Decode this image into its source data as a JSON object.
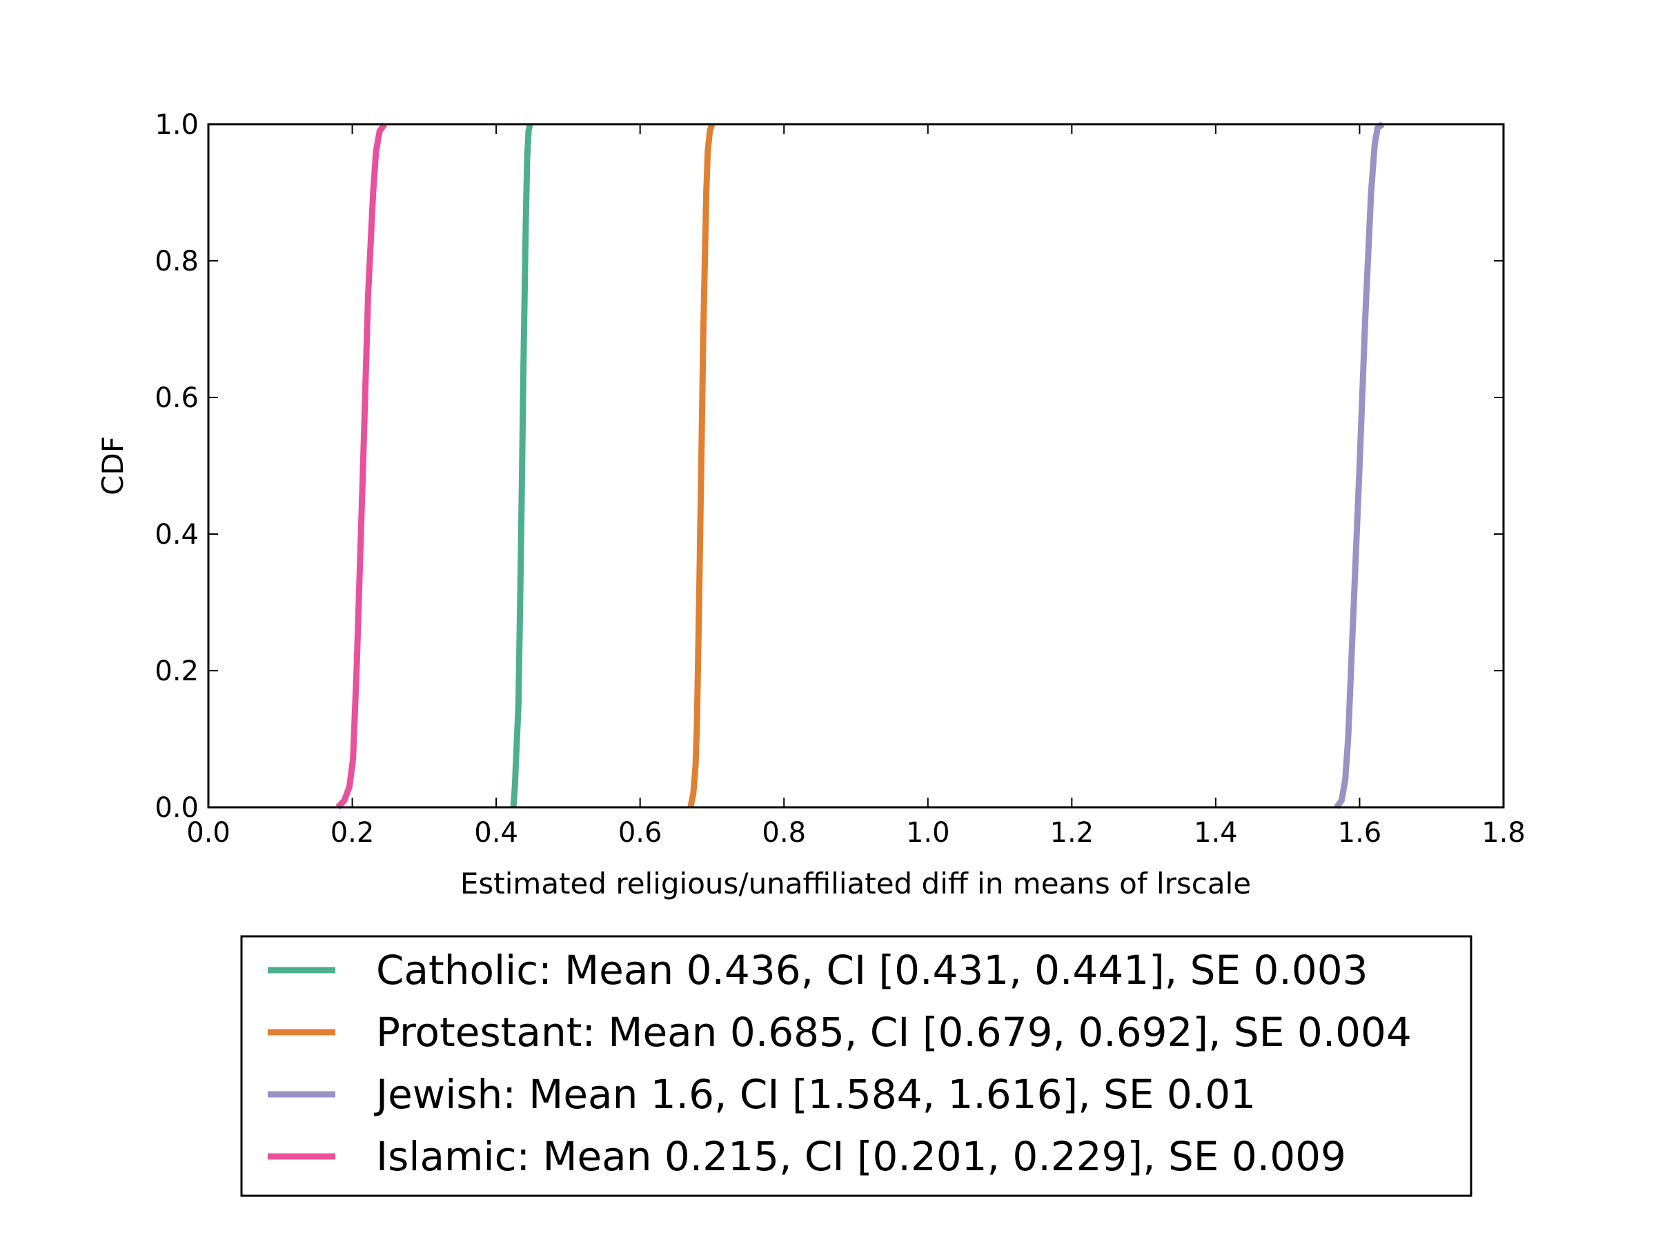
{
  "chart_data": {
    "type": "line",
    "xlabel": "Estimated religious/unaffiliated diff in means of lrscale",
    "ylabel": "CDF",
    "xlim": [
      0.0,
      1.8
    ],
    "ylim": [
      0.0,
      1.0
    ],
    "xticks": [
      "0.0",
      "0.2",
      "0.4",
      "0.6",
      "0.8",
      "1.0",
      "1.2",
      "1.4",
      "1.6",
      "1.8"
    ],
    "yticks": [
      "0.0",
      "0.2",
      "0.4",
      "0.6",
      "0.8",
      "1.0"
    ],
    "grid": false,
    "legend_position": "bottom",
    "series": [
      {
        "name": "Catholic: Mean 0.436, CI [0.431, 0.441], SE 0.003",
        "color": "#4daf8e",
        "points": [
          [
            0.424,
            0.0
          ],
          [
            0.426,
            0.03
          ],
          [
            0.428,
            0.08
          ],
          [
            0.431,
            0.15
          ],
          [
            0.434,
            0.35
          ],
          [
            0.436,
            0.5
          ],
          [
            0.438,
            0.65
          ],
          [
            0.441,
            0.85
          ],
          [
            0.443,
            0.95
          ],
          [
            0.445,
            0.99
          ],
          [
            0.447,
            1.0
          ]
        ]
      },
      {
        "name": "Protestant: Mean 0.685, CI [0.679, 0.692], SE 0.004",
        "color": "#e08132",
        "points": [
          [
            0.67,
            0.0
          ],
          [
            0.674,
            0.02
          ],
          [
            0.677,
            0.06
          ],
          [
            0.679,
            0.12
          ],
          [
            0.682,
            0.3
          ],
          [
            0.685,
            0.5
          ],
          [
            0.688,
            0.7
          ],
          [
            0.692,
            0.9
          ],
          [
            0.694,
            0.96
          ],
          [
            0.697,
            0.99
          ],
          [
            0.7,
            1.0
          ]
        ]
      },
      {
        "name": "Jewish: Mean 1.6, CI [1.584, 1.616], SE 0.01",
        "color": "#9b91c4",
        "points": [
          [
            1.568,
            0.0
          ],
          [
            1.575,
            0.01
          ],
          [
            1.58,
            0.04
          ],
          [
            1.584,
            0.1
          ],
          [
            1.59,
            0.25
          ],
          [
            1.6,
            0.5
          ],
          [
            1.608,
            0.72
          ],
          [
            1.616,
            0.9
          ],
          [
            1.621,
            0.97
          ],
          [
            1.625,
            0.995
          ],
          [
            1.632,
            1.0
          ]
        ]
      },
      {
        "name": "Islamic: Mean 0.215, CI [0.201, 0.229], SE 0.009",
        "color": "#e8519c",
        "points": [
          [
            0.18,
            0.0
          ],
          [
            0.189,
            0.01
          ],
          [
            0.196,
            0.03
          ],
          [
            0.201,
            0.07
          ],
          [
            0.206,
            0.2
          ],
          [
            0.215,
            0.5
          ],
          [
            0.222,
            0.75
          ],
          [
            0.229,
            0.9
          ],
          [
            0.233,
            0.96
          ],
          [
            0.238,
            0.99
          ],
          [
            0.245,
            1.0
          ]
        ]
      }
    ]
  }
}
